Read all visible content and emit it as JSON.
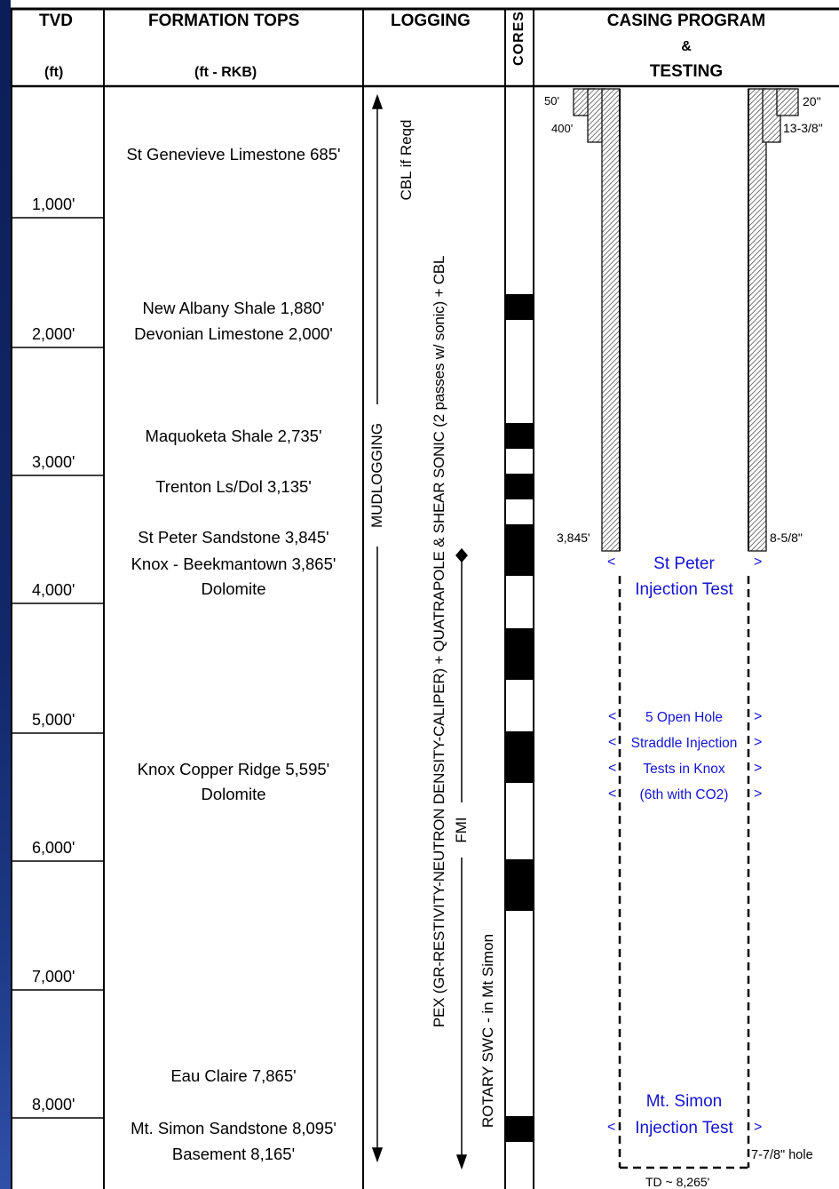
{
  "headers": {
    "tvd": "TVD",
    "tvd_unit": "(ft)",
    "formation_tops": "FORMATION TOPS",
    "formation_unit": "(ft - RKB)",
    "logging": "LOGGING",
    "cores": "CORES",
    "casing_line1": "CASING PROGRAM",
    "casing_line2": "&",
    "casing_line3": "TESTING"
  },
  "depth_labels": [
    "1,000'",
    "2,000'",
    "3,000'",
    "4,000'",
    "5,000'",
    "6,000'",
    "7,000'",
    "8,000'"
  ],
  "formations": [
    "St Genevieve Limestone 685'",
    "New Albany Shale 1,880'",
    "Devonian Limestone 2,000'",
    "Maquoketa Shale 2,735'",
    "Trenton Ls/Dol 3,135'",
    "St Peter Sandstone 3,845'",
    "Knox - Beekmantown 3,865'",
    "Dolomite",
    "Knox Copper Ridge 5,595'",
    "Dolomite",
    "Eau Claire 7,865'",
    "Mt. Simon Sandstone 8,095'",
    "Basement 8,165'"
  ],
  "logging": {
    "cbl": "CBL if Reqd",
    "mudlogging": "MUDLOGGING",
    "sonic": "PEX (GR-RESTIVITY-NEUTRON DENSITY-CALIPER) + QUATRAPOLE & SHEAR SONIC (2 passes w/ sonic) + CBL",
    "fmi": "FMI",
    "rotary": "ROTARY SWC - in Mt Simon"
  },
  "casing": {
    "conductor_depth": "50'",
    "surface_depth": "400'",
    "conductor_size": "20\"",
    "surface_size": "13-3/8\"",
    "intermediate_depth": "3,845'",
    "intermediate_size": "8-5/8\"",
    "hole_size": "7-7/8\" hole",
    "td": "TD ~ 8,265'"
  },
  "tests": {
    "st_peter_line1": "St Peter",
    "st_peter_line2": "Injection Test",
    "knox_lines": [
      "5 Open Hole",
      "Straddle Injection",
      "Tests in Knox",
      "(6th with CO2)"
    ],
    "mt_simon_line1": "Mt. Simon",
    "mt_simon_line2": "Injection Test",
    "arrow_left": "<",
    "arrow_right": ">"
  },
  "colors": {
    "test_text": "#1414d2",
    "core_fill": "#000000",
    "background_strip": "#13286a"
  }
}
